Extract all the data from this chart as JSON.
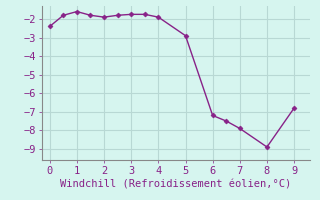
{
  "x": [
    0,
    0.5,
    1,
    1.5,
    2,
    2.5,
    3,
    3.5,
    4,
    5,
    6,
    6.5,
    7,
    8,
    9
  ],
  "y": [
    -2.4,
    -1.8,
    -1.6,
    -1.8,
    -1.9,
    -1.8,
    -1.75,
    -1.75,
    -1.9,
    -2.9,
    -7.2,
    -7.5,
    -7.9,
    -8.9,
    -6.8
  ],
  "line_color": "#882288",
  "marker": "D",
  "marker_size": 2.5,
  "bg_color": "#d6f5ef",
  "grid_color": "#b8d8d4",
  "xlabel": "Windchill (Refroidissement éolien,°C)",
  "xlabel_color": "#882288",
  "xlabel_fontsize": 7.5,
  "tick_color": "#882288",
  "tick_labelsize": 7.5,
  "ylim": [
    -9.6,
    -1.3
  ],
  "xlim": [
    -0.3,
    9.6
  ],
  "yticks": [
    -2,
    -3,
    -4,
    -5,
    -6,
    -7,
    -8,
    -9
  ],
  "xticks": [
    0,
    1,
    2,
    3,
    4,
    5,
    6,
    7,
    8,
    9
  ],
  "spine_color": "#888888",
  "linewidth": 1.0
}
